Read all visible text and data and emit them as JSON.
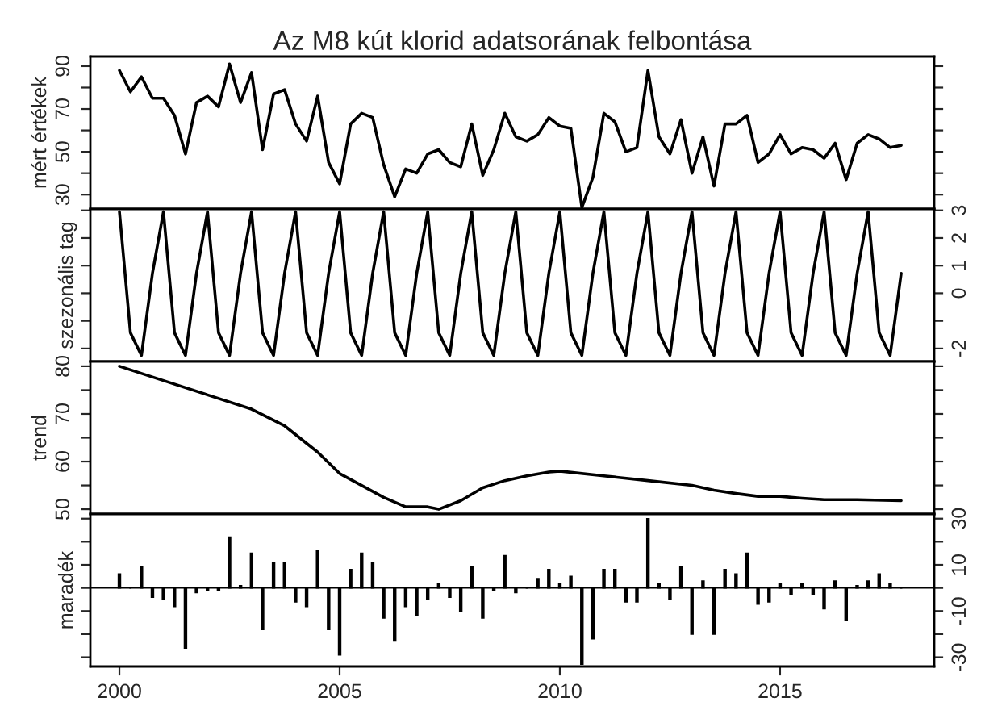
{
  "chart_data": [
    {
      "type": "line",
      "title": "Az M8 kút klorid adatsorának felbontása",
      "ylabel": "mért értékek",
      "xlim": [
        1999.34,
        2018.5
      ],
      "xticks": [
        2000,
        2005,
        2010,
        2015
      ],
      "ylim": [
        23.3,
        94.5
      ],
      "yticks": [
        30,
        {
          "value": 40,
          "label": null
        },
        50,
        {
          "value": 60,
          "label": null
        },
        70,
        {
          "value": 80,
          "label": null
        },
        90
      ],
      "tick_labels": "y",
      "x": [
        2000,
        2000.25,
        2000.5,
        2000.75,
        2001,
        2001.25,
        2001.5,
        2001.75,
        2002,
        2002.25,
        2002.5,
        2002.75,
        2003,
        2003.25,
        2003.5,
        2003.75,
        2004,
        2004.25,
        2004.5,
        2004.75,
        2005,
        2005.25,
        2005.5,
        2005.75,
        2006,
        2006.25,
        2006.5,
        2006.75,
        2007,
        2007.25,
        2007.5,
        2007.75,
        2008,
        2008.25,
        2008.5,
        2008.75,
        2009,
        2009.25,
        2009.5,
        2009.75,
        2010,
        2010.25,
        2010.5,
        2010.75,
        2011,
        2011.25,
        2011.5,
        2011.75,
        2012,
        2012.25,
        2012.5,
        2012.75,
        2013,
        2013.25,
        2013.5,
        2013.75,
        2014,
        2014.25,
        2014.5,
        2014.75,
        2015,
        2015.25,
        2015.5,
        2015.75,
        2016,
        2016.25,
        2016.5,
        2016.75,
        2017,
        2017.25,
        2017.5,
        2017.75
      ],
      "series": [
        {
          "color": "#000000",
          "values": [
            88,
            78,
            85,
            75,
            75,
            67,
            49,
            73,
            76,
            71,
            91,
            73,
            87,
            51,
            77,
            79,
            63,
            55,
            76,
            45,
            35,
            63,
            68,
            66,
            44,
            29,
            42,
            40,
            49,
            51,
            45,
            43,
            63,
            39,
            51,
            68,
            57,
            55,
            58,
            66,
            62,
            61,
            24,
            38,
            68,
            64,
            50,
            52,
            88,
            57,
            49,
            65,
            40,
            57,
            34,
            63,
            63,
            67,
            45,
            49,
            58,
            49,
            52,
            51,
            47,
            54,
            37,
            54,
            58,
            56,
            52,
            53
          ]
        }
      ]
    },
    {
      "type": "line",
      "ylabel": "szezonális tag",
      "xlim": [
        1999.34,
        2018.5
      ],
      "xticks": [
        2000,
        2005,
        2010,
        2015
      ],
      "ylim": [
        -2.47,
        3.05
      ],
      "yticks": [
        -2,
        {
          "value": -1,
          "label": null
        },
        0,
        1,
        2,
        3
      ],
      "tick_labels": "y",
      "x": [
        2000,
        2000.25,
        2000.5,
        2000.75,
        2001,
        2001.25,
        2001.5,
        2001.75,
        2002,
        2002.25,
        2002.5,
        2002.75,
        2003,
        2003.25,
        2003.5,
        2003.75,
        2004,
        2004.25,
        2004.5,
        2004.75,
        2005,
        2005.25,
        2005.5,
        2005.75,
        2006,
        2006.25,
        2006.5,
        2006.75,
        2007,
        2007.25,
        2007.5,
        2007.75,
        2008,
        2008.25,
        2008.5,
        2008.75,
        2009,
        2009.25,
        2009.5,
        2009.75,
        2010,
        2010.25,
        2010.5,
        2010.75,
        2011,
        2011.25,
        2011.5,
        2011.75,
        2012,
        2012.25,
        2012.5,
        2012.75,
        2013,
        2013.25,
        2013.5,
        2013.75,
        2014,
        2014.25,
        2014.5,
        2014.75,
        2015,
        2015.25,
        2015.5,
        2015.75,
        2016,
        2016.25,
        2016.5,
        2016.75,
        2017,
        2017.25,
        2017.5,
        2017.75
      ],
      "series": [
        {
          "color": "#000000",
          "values": [
            2.95,
            -1.43,
            -2.25,
            0.72,
            2.95,
            -1.43,
            -2.25,
            0.72,
            2.95,
            -1.43,
            -2.25,
            0.72,
            2.95,
            -1.43,
            -2.25,
            0.72,
            2.95,
            -1.43,
            -2.25,
            0.72,
            2.95,
            -1.43,
            -2.25,
            0.72,
            2.95,
            -1.43,
            -2.25,
            0.72,
            2.95,
            -1.43,
            -2.25,
            0.72,
            2.95,
            -1.43,
            -2.25,
            0.72,
            2.95,
            -1.43,
            -2.25,
            0.72,
            2.95,
            -1.43,
            -2.25,
            0.72,
            2.95,
            -1.43,
            -2.25,
            0.72,
            2.95,
            -1.43,
            -2.25,
            0.72,
            2.95,
            -1.43,
            -2.25,
            0.72,
            2.95,
            -1.43,
            -2.25,
            0.72,
            2.95,
            -1.43,
            -2.25,
            0.72,
            2.95,
            -1.43,
            -2.25,
            0.72,
            2.95,
            -1.43,
            -2.25,
            0.72
          ]
        }
      ]
    },
    {
      "type": "line",
      "ylabel": "trend",
      "xlim": [
        1999.34,
        2018.5
      ],
      "xticks": [
        2000,
        2005,
        2010,
        2015
      ],
      "ylim": [
        49,
        81
      ],
      "yticks": [
        50,
        {
          "value": 55,
          "label": null
        },
        60,
        {
          "value": 65,
          "label": null
        },
        70,
        {
          "value": 75,
          "label": null
        },
        80
      ],
      "tick_labels": "y",
      "series": [
        {
          "color": "#000000",
          "x": [
            2000,
            2001,
            2002,
            2003,
            2003.75,
            2004.5,
            2005,
            2005.5,
            2006,
            2006.5,
            2007,
            2007.25,
            2007.75,
            2008.25,
            2008.75,
            2009.25,
            2009.75,
            2010,
            2011,
            2012,
            2013,
            2013.5,
            2014,
            2014.5,
            2015,
            2015.5,
            2016,
            2016.75,
            2017.75
          ],
          "values": [
            80,
            77,
            74,
            71,
            67.5,
            62,
            57.5,
            55,
            52.5,
            50.5,
            50.5,
            50,
            51.8,
            54.5,
            56,
            57,
            57.8,
            58,
            57,
            56,
            55,
            54,
            53.3,
            52.7,
            52.7,
            52.3,
            52,
            52,
            51.8
          ]
        }
      ]
    },
    {
      "type": "bar",
      "ylabel": "maradék",
      "xlim": [
        1999.34,
        2018.5
      ],
      "xticks": [
        2000,
        2005,
        2010,
        2015
      ],
      "ylim": [
        -34,
        32
      ],
      "yticks": [
        -30,
        {
          "value": -20,
          "label": null
        },
        -10,
        {
          "value": 0,
          "label": null
        },
        10,
        {
          "value": 20,
          "label": null
        },
        30
      ],
      "ref_lines": [
        {
          "axis": "y",
          "value": 0,
          "color": "#000000"
        }
      ],
      "x": [
        2000,
        2000.25,
        2000.5,
        2000.75,
        2001,
        2001.25,
        2001.5,
        2001.75,
        2002,
        2002.25,
        2002.5,
        2002.75,
        2003,
        2003.25,
        2003.5,
        2003.75,
        2004,
        2004.25,
        2004.5,
        2004.75,
        2005,
        2005.25,
        2005.5,
        2005.75,
        2006,
        2006.25,
        2006.5,
        2006.75,
        2007,
        2007.25,
        2007.5,
        2007.75,
        2008,
        2008.25,
        2008.5,
        2008.75,
        2009,
        2009.25,
        2009.5,
        2009.75,
        2010,
        2010.25,
        2010.5,
        2010.75,
        2011,
        2011.25,
        2011.5,
        2011.75,
        2012,
        2012.25,
        2012.5,
        2012.75,
        2013,
        2013.25,
        2013.5,
        2013.75,
        2014,
        2014.25,
        2014.5,
        2014.75,
        2015,
        2015.25,
        2015.5,
        2015.75,
        2016,
        2016.25,
        2016.5,
        2016.75,
        2017,
        2017.25,
        2017.5,
        2017.75
      ],
      "series": [
        {
          "color": "#000000",
          "values": [
            6,
            0,
            9,
            -4,
            -5,
            -8,
            -26,
            -2,
            -1,
            -1,
            22,
            1,
            15,
            -18,
            11,
            11,
            -6,
            -8,
            16,
            -18,
            -29,
            8,
            15,
            11,
            -13,
            -23,
            -8,
            -12,
            -5,
            2,
            -4,
            -10,
            9,
            -13,
            -1,
            14,
            -2,
            0,
            4,
            8,
            2,
            5,
            -33,
            -22,
            8,
            8,
            -6,
            -6,
            30,
            2,
            -5,
            9,
            -20,
            3,
            -20,
            8,
            6,
            15,
            -7,
            -6,
            2,
            -3,
            2,
            -3,
            -9,
            3,
            -14,
            1,
            3,
            6,
            2,
            0
          ]
        }
      ]
    }
  ]
}
